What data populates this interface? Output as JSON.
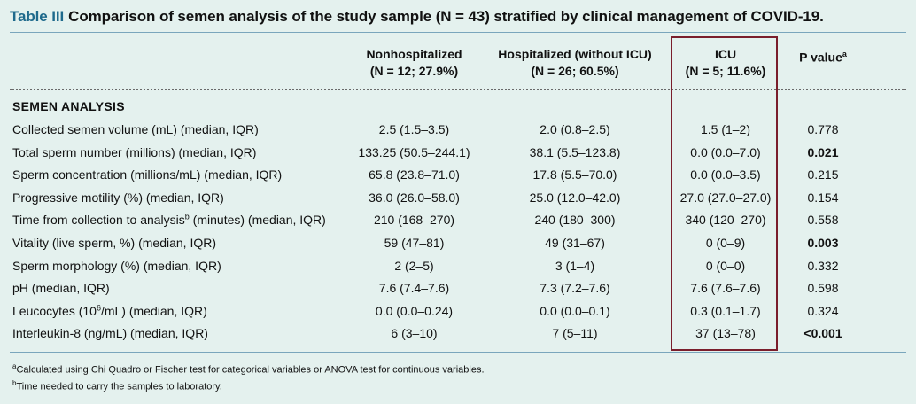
{
  "table": {
    "label": "Table III",
    "caption": "Comparison of semen analysis of the study sample (N = 43) stratified by clinical management of COVID-19."
  },
  "headers": {
    "nonhospitalized": {
      "line1": "Nonhospitalized",
      "line2": "(N = 12; 27.9%)"
    },
    "hospitalized": {
      "line1": "Hospitalized (without ICU)",
      "line2": "(N = 26; 60.5%)"
    },
    "icu": {
      "line1": "ICU",
      "line2": "(N = 5; 11.6%)"
    },
    "pvalue": {
      "label": "P value",
      "sup": "a"
    }
  },
  "section_title": "SEMEN ANALYSIS",
  "rows": [
    {
      "label": "Collected semen volume (mL) (median, IQR)",
      "nonhosp": "2.5 (1.5–3.5)",
      "hosp": "2.0 (0.8–2.5)",
      "icu": "1.5 (1–2)",
      "p": "0.778",
      "sig": false
    },
    {
      "label": "Total sperm number (millions) (median, IQR)",
      "nonhosp": "133.25 (50.5–244.1)",
      "hosp": "38.1 (5.5–123.8)",
      "icu": "0.0 (0.0–7.0)",
      "p": "0.021",
      "sig": true
    },
    {
      "label": "Sperm concentration (millions/mL) (median, IQR)",
      "nonhosp": "65.8 (23.8–71.0)",
      "hosp": "17.8 (5.5–70.0)",
      "icu": "0.0 (0.0–3.5)",
      "p": "0.215",
      "sig": false
    },
    {
      "label": "Progressive motility (%) (median, IQR)",
      "nonhosp": "36.0 (26.0–58.0)",
      "hosp": "25.0 (12.0–42.0)",
      "icu": "27.0 (27.0–27.0)",
      "p": "0.154",
      "sig": false
    },
    {
      "label_pre": "Time from collection to analysis",
      "label_sup": "b",
      "label_post": " (minutes) (median, IQR)",
      "nonhosp": "210 (168–270)",
      "hosp": "240 (180–300)",
      "icu": "340 (120–270)",
      "p": "0.558",
      "sig": false
    },
    {
      "label": "Vitality (live sperm, %) (median, IQR)",
      "nonhosp": "59 (47–81)",
      "hosp": "49 (31–67)",
      "icu": "0 (0–9)",
      "p": "0.003",
      "sig": true
    },
    {
      "label": "Sperm morphology (%) (median, IQR)",
      "nonhosp": "2 (2–5)",
      "hosp": "3 (1–4)",
      "icu": "0 (0–0)",
      "p": "0.332",
      "sig": false
    },
    {
      "label": "pH (median, IQR)",
      "nonhosp": "7.6 (7.4–7.6)",
      "hosp": "7.3 (7.2–7.6)",
      "icu": "7.6 (7.6–7.6)",
      "p": "0.598",
      "sig": false
    },
    {
      "label_pre": "Leucocytes (10",
      "label_sup": "6",
      "label_post": "/mL) (median, IQR)",
      "nonhosp": "0.0 (0.0–0.24)",
      "hosp": "0.0 (0.0–0.1)",
      "icu": "0.3 (0.1–1.7)",
      "p": "0.324",
      "sig": false
    },
    {
      "label": "Interleukin-8 (ng/mL) (median, IQR)",
      "nonhosp": "6 (3–10)",
      "hosp": "7 (5–11)",
      "icu": "37 (13–78)",
      "p": "<0.001",
      "sig": true
    }
  ],
  "footnotes": {
    "a": {
      "mark": "a",
      "text": "Calculated using Chi Quadro or Fischer test for categorical variables or ANOVA test for continuous variables."
    },
    "b": {
      "mark": "b",
      "text": "Time needed to carry the samples to laboratory."
    }
  },
  "colors": {
    "background": "#e4f1ee",
    "label_blue": "#1f6a8c",
    "icu_border": "#7a1e2c"
  }
}
